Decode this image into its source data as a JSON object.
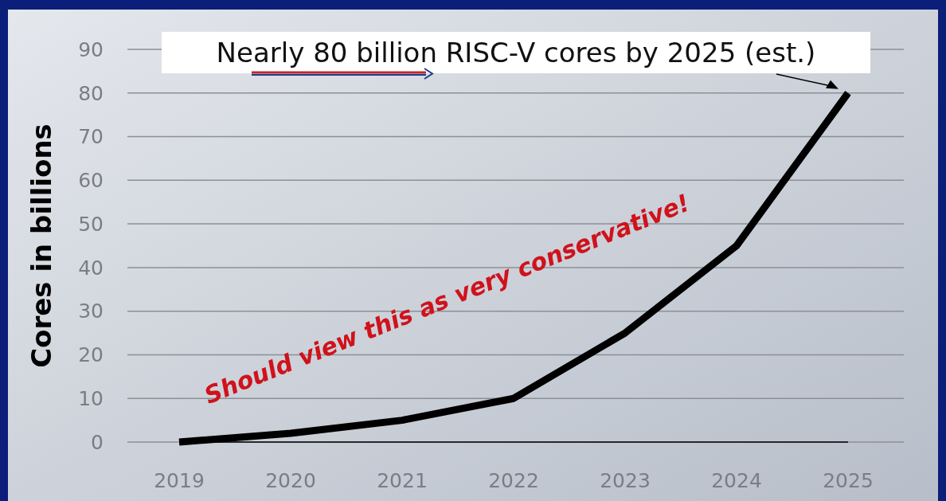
{
  "chart_data": {
    "type": "line",
    "ylabel": "Cores in billions",
    "categories": [
      "2019",
      "2020",
      "2021",
      "2022",
      "2023",
      "2024",
      "2025"
    ],
    "series": [
      {
        "color": "#000000",
        "values": [
          0,
          2,
          5,
          10,
          25,
          45,
          80
        ]
      }
    ],
    "ylim": [
      0,
      90
    ],
    "yticks": [
      0,
      10,
      20,
      30,
      40,
      50,
      60,
      70,
      80,
      90
    ],
    "grid": "y",
    "marker": "none",
    "line_style": "solid",
    "annotations": [
      {
        "text": "Nearly 80 billion RISC-V cores by 2025 (est.)",
        "x": "2025",
        "y": 80
      },
      "Should view this as very conservative!"
    ]
  }
}
